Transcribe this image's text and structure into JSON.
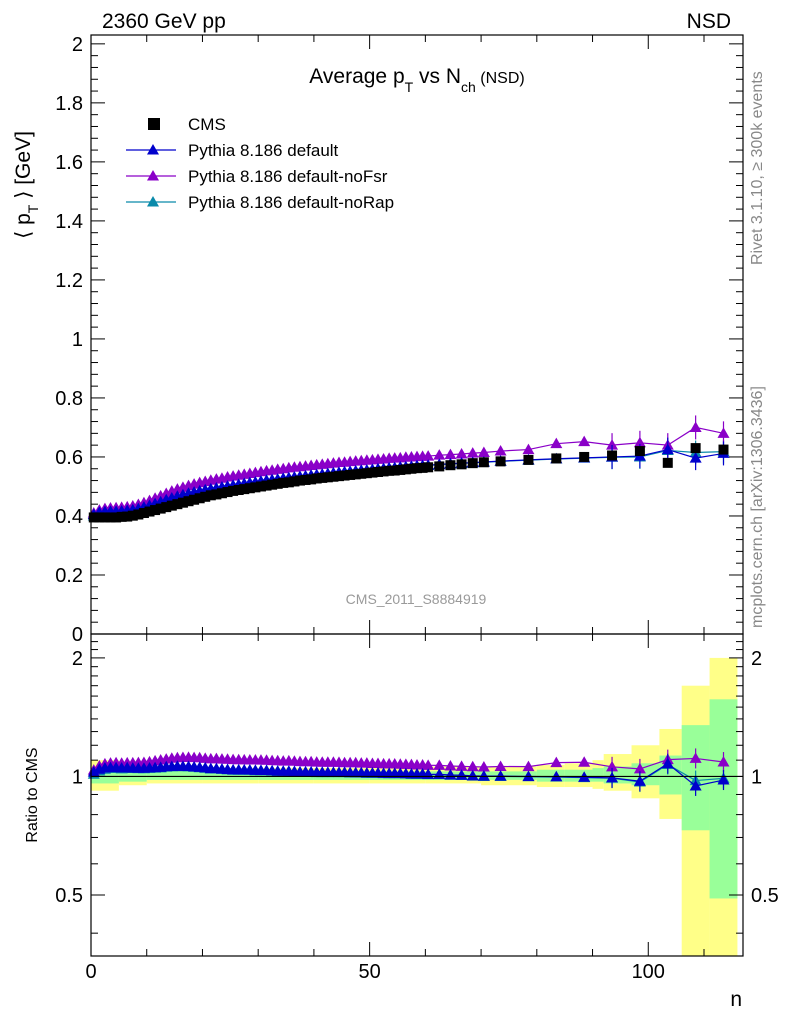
{
  "header": {
    "left": "2360 GeV pp",
    "right": "NSD"
  },
  "side_labels": {
    "rivet": "Rivet 3.1.10, ≥ 300k events",
    "mcplots": "mcplots.cern.ch [arXiv:1306.3436]"
  },
  "watermark": "CMS_2011_S8884919",
  "colors": {
    "cms": "#000000",
    "default": "#0000cc",
    "noFsr": "#8a00c8",
    "noRap": "#0a8aaa",
    "band_yellow": "#ffff88",
    "band_green": "#99ff99",
    "frame": "#000000"
  },
  "chart_data": [
    {
      "type": "scatter",
      "panel": "main",
      "title_parts": {
        "pre": "Average p",
        "sub1": "T",
        "mid": " vs N",
        "sub2": "ch",
        "post": " (NSD)"
      },
      "ylabel_parts": {
        "open": "⟨ p",
        "sub": "T",
        "close": " ⟩ [GeV]"
      },
      "xlabel": "",
      "xlim": [
        0,
        117
      ],
      "ylim": [
        0,
        2.03
      ],
      "yticks": [
        0,
        0.2,
        0.4,
        0.6,
        0.8,
        1,
        1.2,
        1.4,
        1.6,
        1.8,
        2
      ],
      "ytick_labels": [
        "0",
        "0.2",
        "0.4",
        "0.6",
        "0.8",
        "1",
        "1.2",
        "1.4",
        "1.6",
        "1.8",
        "2"
      ],
      "legend": {
        "placement": "top-left",
        "entries": [
          "CMS",
          "Pythia 8.186 default",
          "Pythia 8.186 default-noFsr",
          "Pythia 8.186 default-noRap"
        ]
      },
      "x": [
        0,
        1,
        2,
        3,
        4,
        5,
        6,
        7,
        8,
        9,
        10,
        11,
        12,
        13,
        14,
        15,
        16,
        17,
        18,
        19,
        20,
        21,
        22,
        23,
        24,
        25,
        26,
        27,
        28,
        29,
        30,
        31,
        32,
        33,
        34,
        35,
        36,
        37,
        38,
        39,
        40,
        41,
        42,
        43,
        44,
        45,
        46,
        47,
        48,
        49,
        50,
        51,
        52,
        53,
        54,
        55,
        56,
        57,
        58,
        59,
        60,
        62,
        64,
        66,
        68,
        70,
        73,
        78,
        83,
        88,
        93,
        98,
        103,
        108,
        113
      ],
      "series": [
        {
          "name": "CMS",
          "marker": "square",
          "values": [
            0.395,
            0.395,
            0.395,
            0.395,
            0.395,
            0.397,
            0.398,
            0.401,
            0.405,
            0.41,
            0.415,
            0.42,
            0.425,
            0.43,
            0.435,
            0.44,
            0.445,
            0.45,
            0.455,
            0.46,
            0.465,
            0.47,
            0.473,
            0.477,
            0.481,
            0.485,
            0.488,
            0.491,
            0.494,
            0.497,
            0.5,
            0.503,
            0.506,
            0.509,
            0.512,
            0.514,
            0.517,
            0.52,
            0.522,
            0.524,
            0.527,
            0.529,
            0.531,
            0.533,
            0.535,
            0.537,
            0.539,
            0.541,
            0.543,
            0.545,
            0.547,
            0.549,
            0.551,
            0.553,
            0.554,
            0.556,
            0.558,
            0.56,
            0.562,
            0.563,
            0.565,
            0.568,
            0.572,
            0.575,
            0.579,
            0.582,
            0.585,
            0.59,
            0.595,
            0.6,
            0.605,
            0.62,
            0.58,
            0.63,
            0.625
          ]
        },
        {
          "name": "Pythia 8.186 default",
          "marker": "triangle",
          "values": [
            0.405,
            0.412,
            0.415,
            0.416,
            0.416,
            0.417,
            0.419,
            0.421,
            0.425,
            0.43,
            0.436,
            0.442,
            0.448,
            0.455,
            0.461,
            0.467,
            0.472,
            0.477,
            0.481,
            0.485,
            0.489,
            0.492,
            0.495,
            0.498,
            0.501,
            0.504,
            0.507,
            0.51,
            0.513,
            0.515,
            0.518,
            0.521,
            0.523,
            0.525,
            0.528,
            0.53,
            0.532,
            0.534,
            0.536,
            0.538,
            0.54,
            0.542,
            0.544,
            0.546,
            0.548,
            0.55,
            0.551,
            0.553,
            0.555,
            0.556,
            0.558,
            0.56,
            0.561,
            0.563,
            0.564,
            0.566,
            0.567,
            0.568,
            0.57,
            0.571,
            0.572,
            0.575,
            0.577,
            0.579,
            0.581,
            0.583,
            0.586,
            0.59,
            0.594,
            0.597,
            0.6,
            0.603,
            0.625,
            0.596,
            0.612
          ]
        },
        {
          "name": "Pythia 8.186 default-noFsr",
          "marker": "triangle",
          "values": [
            0.41,
            0.42,
            0.425,
            0.427,
            0.428,
            0.429,
            0.431,
            0.434,
            0.439,
            0.445,
            0.452,
            0.46,
            0.468,
            0.476,
            0.484,
            0.491,
            0.497,
            0.503,
            0.508,
            0.513,
            0.517,
            0.521,
            0.525,
            0.528,
            0.532,
            0.535,
            0.538,
            0.541,
            0.544,
            0.547,
            0.55,
            0.553,
            0.555,
            0.558,
            0.56,
            0.563,
            0.565,
            0.567,
            0.569,
            0.571,
            0.573,
            0.575,
            0.577,
            0.579,
            0.581,
            0.582,
            0.584,
            0.586,
            0.587,
            0.589,
            0.59,
            0.592,
            0.593,
            0.595,
            0.596,
            0.597,
            0.599,
            0.6,
            0.601,
            0.602,
            0.603,
            0.606,
            0.608,
            0.61,
            0.613,
            0.615,
            0.62,
            0.625,
            0.645,
            0.652,
            0.64,
            0.648,
            0.64,
            0.7,
            0.68
          ]
        },
        {
          "name": "Pythia 8.186 default-noRap",
          "marker": "triangle",
          "values": [
            0.4,
            0.408,
            0.412,
            0.414,
            0.414,
            0.415,
            0.417,
            0.42,
            0.424,
            0.429,
            0.435,
            0.441,
            0.447,
            0.454,
            0.46,
            0.466,
            0.471,
            0.476,
            0.48,
            0.484,
            0.488,
            0.491,
            0.494,
            0.497,
            0.5,
            0.503,
            0.506,
            0.509,
            0.512,
            0.514,
            0.517,
            0.52,
            0.522,
            0.524,
            0.527,
            0.529,
            0.531,
            0.533,
            0.535,
            0.537,
            0.539,
            0.541,
            0.543,
            0.545,
            0.547,
            0.549,
            0.55,
            0.552,
            0.554,
            0.555,
            0.557,
            0.559,
            0.56,
            0.562,
            0.563,
            0.565,
            0.566,
            0.567,
            0.569,
            0.57,
            0.571,
            0.574,
            0.576,
            0.578,
            0.58,
            0.582,
            0.585,
            0.589,
            0.593,
            0.596,
            0.599,
            0.6,
            0.622,
            0.615,
            0.618
          ]
        }
      ]
    },
    {
      "type": "line",
      "panel": "ratio",
      "ylabel": "Ratio to CMS",
      "xlabel": "n",
      "log_scale_y": true,
      "xlim": [
        0,
        117
      ],
      "ylim": [
        0.35,
        2.3
      ],
      "yticks": [
        0.5,
        1,
        2
      ],
      "ytick_labels": [
        "0.5",
        "1",
        "2"
      ],
      "xticks": [
        0,
        50,
        100
      ],
      "xtick_labels": [
        "0",
        "50",
        "100"
      ],
      "bands": {
        "edges": [
          0,
          5,
          10,
          20,
          30,
          40,
          50,
          60,
          70,
          80,
          85,
          90,
          92,
          97,
          102,
          106,
          111,
          116
        ],
        "yellow_low": [
          0.92,
          0.95,
          0.96,
          0.96,
          0.96,
          0.96,
          0.96,
          0.96,
          0.95,
          0.94,
          0.94,
          0.93,
          0.92,
          0.88,
          0.78,
          0.35,
          0.35
        ],
        "yellow_high": [
          1.1,
          1.07,
          1.05,
          1.05,
          1.05,
          1.05,
          1.05,
          1.06,
          1.06,
          1.07,
          1.08,
          1.1,
          1.14,
          1.2,
          1.32,
          1.7,
          2.0
        ],
        "green_low": [
          0.96,
          0.97,
          0.98,
          0.98,
          0.98,
          0.98,
          0.98,
          0.98,
          0.98,
          0.97,
          0.97,
          0.97,
          0.96,
          0.95,
          0.9,
          0.73,
          0.49
        ],
        "green_high": [
          1.05,
          1.04,
          1.03,
          1.03,
          1.03,
          1.03,
          1.03,
          1.03,
          1.03,
          1.04,
          1.04,
          1.05,
          1.06,
          1.08,
          1.13,
          1.35,
          1.57
        ]
      }
    }
  ]
}
